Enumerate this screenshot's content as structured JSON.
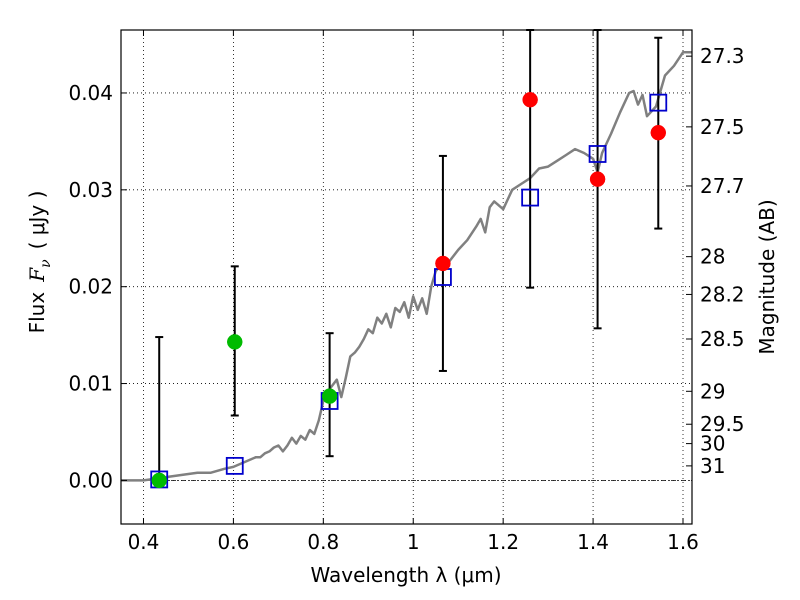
{
  "chart_data": {
    "type": "scatter",
    "xlabel": "Wavelength  λ (μm)",
    "ylabel_prefix": "Flux",
    "ylabel_symbol": "F",
    "ylabel_subscript": "ν",
    "ylabel_suffix": "( μJy )",
    "right_ylabel": "Magnitude (AB)",
    "xlim": [
      0.35,
      1.62
    ],
    "ylim": [
      -0.0045,
      0.0465
    ],
    "grid": true,
    "x_ticks": [
      0.4,
      0.6,
      0.8,
      1.0,
      1.2,
      1.4,
      1.6
    ],
    "x_tick_labels": [
      "0.4",
      "0.6",
      "0.8",
      "1",
      "1.2",
      "1.4",
      "1.6"
    ],
    "y_ticks": [
      0.0,
      0.01,
      0.02,
      0.03,
      0.04
    ],
    "y_tick_labels": [
      "0.00",
      "0.01",
      "0.02",
      "0.03",
      "0.04"
    ],
    "right_ticks": [
      {
        "label": "27.3",
        "flux": 0.0438
      },
      {
        "label": "27.5",
        "flux": 0.0365
      },
      {
        "label": "27.7",
        "flux": 0.0304
      },
      {
        "label": "28",
        "flux": 0.0231
      },
      {
        "label": "28.2",
        "flux": 0.0192
      },
      {
        "label": "28.5",
        "flux": 0.0146
      },
      {
        "label": "29",
        "flux": 0.0092
      },
      {
        "label": "29.5",
        "flux": 0.0058
      },
      {
        "label": "30",
        "flux": 0.0038
      },
      {
        "label": "31",
        "flux": 0.0015
      }
    ],
    "model_spectrum": {
      "color": "#808080",
      "x": [
        0.35,
        0.4,
        0.43,
        0.46,
        0.49,
        0.52,
        0.55,
        0.58,
        0.6,
        0.62,
        0.64,
        0.65,
        0.66,
        0.67,
        0.68,
        0.69,
        0.7,
        0.71,
        0.72,
        0.73,
        0.74,
        0.75,
        0.76,
        0.77,
        0.78,
        0.79,
        0.8,
        0.81,
        0.82,
        0.83,
        0.84,
        0.85,
        0.86,
        0.87,
        0.88,
        0.89,
        0.9,
        0.91,
        0.92,
        0.93,
        0.94,
        0.95,
        0.96,
        0.97,
        0.98,
        0.99,
        1.0,
        1.01,
        1.02,
        1.03,
        1.04,
        1.05,
        1.06,
        1.07,
        1.08,
        1.1,
        1.12,
        1.14,
        1.15,
        1.16,
        1.17,
        1.18,
        1.19,
        1.2,
        1.21,
        1.22,
        1.24,
        1.26,
        1.28,
        1.3,
        1.32,
        1.34,
        1.36,
        1.38,
        1.4,
        1.41,
        1.42,
        1.44,
        1.46,
        1.48,
        1.49,
        1.5,
        1.51,
        1.52,
        1.54,
        1.56,
        1.58,
        1.6,
        1.62
      ],
      "y": [
        0.0,
        0.0,
        0.0002,
        0.0004,
        0.0006,
        0.0008,
        0.0008,
        0.0012,
        0.0014,
        0.0018,
        0.0022,
        0.0024,
        0.0024,
        0.0028,
        0.003,
        0.0034,
        0.0036,
        0.003,
        0.0036,
        0.0044,
        0.0038,
        0.0046,
        0.0042,
        0.0052,
        0.0048,
        0.0062,
        0.0082,
        0.0092,
        0.0098,
        0.0104,
        0.0086,
        0.0106,
        0.0128,
        0.0132,
        0.0138,
        0.0146,
        0.0156,
        0.0152,
        0.0168,
        0.0162,
        0.0172,
        0.0158,
        0.0178,
        0.0174,
        0.0184,
        0.0168,
        0.019,
        0.0176,
        0.0188,
        0.0172,
        0.02,
        0.0216,
        0.0222,
        0.0222,
        0.0226,
        0.0238,
        0.0248,
        0.0262,
        0.027,
        0.0256,
        0.0282,
        0.0288,
        0.0284,
        0.028,
        0.029,
        0.03,
        0.0306,
        0.0312,
        0.0322,
        0.0324,
        0.033,
        0.0336,
        0.0342,
        0.0338,
        0.0332,
        0.0318,
        0.0338,
        0.0358,
        0.038,
        0.04,
        0.0402,
        0.0388,
        0.0398,
        0.0376,
        0.0386,
        0.0418,
        0.0428,
        0.0442,
        0.0442
      ]
    },
    "model_fluxes": {
      "marker": "open-square",
      "color": "#0000cc",
      "x": [
        0.435,
        0.603,
        0.814,
        1.066,
        1.26,
        1.41,
        1.545
      ],
      "y": [
        0.0001,
        0.0015,
        0.0082,
        0.021,
        0.0292,
        0.0337,
        0.039
      ]
    },
    "detections": {
      "marker": "circle",
      "color": "#ff0000",
      "x": [
        1.066,
        1.26,
        1.41,
        1.545
      ],
      "y": [
        0.0224,
        0.0393,
        0.0311,
        0.0359
      ],
      "yerr_low": [
        0.0113,
        0.0199,
        0.0157,
        0.026
      ],
      "yerr_high": [
        0.0335,
        0.0465,
        0.0465,
        0.0457
      ]
    },
    "limits": {
      "marker": "circle",
      "color": "#00bb00",
      "x": [
        0.435,
        0.603,
        0.814
      ],
      "y": [
        0.0,
        0.0143,
        0.0087
      ],
      "yerr_low": [
        0.0,
        0.0067,
        0.0025
      ],
      "yerr_high": [
        0.0148,
        0.0221,
        0.0152
      ]
    }
  }
}
